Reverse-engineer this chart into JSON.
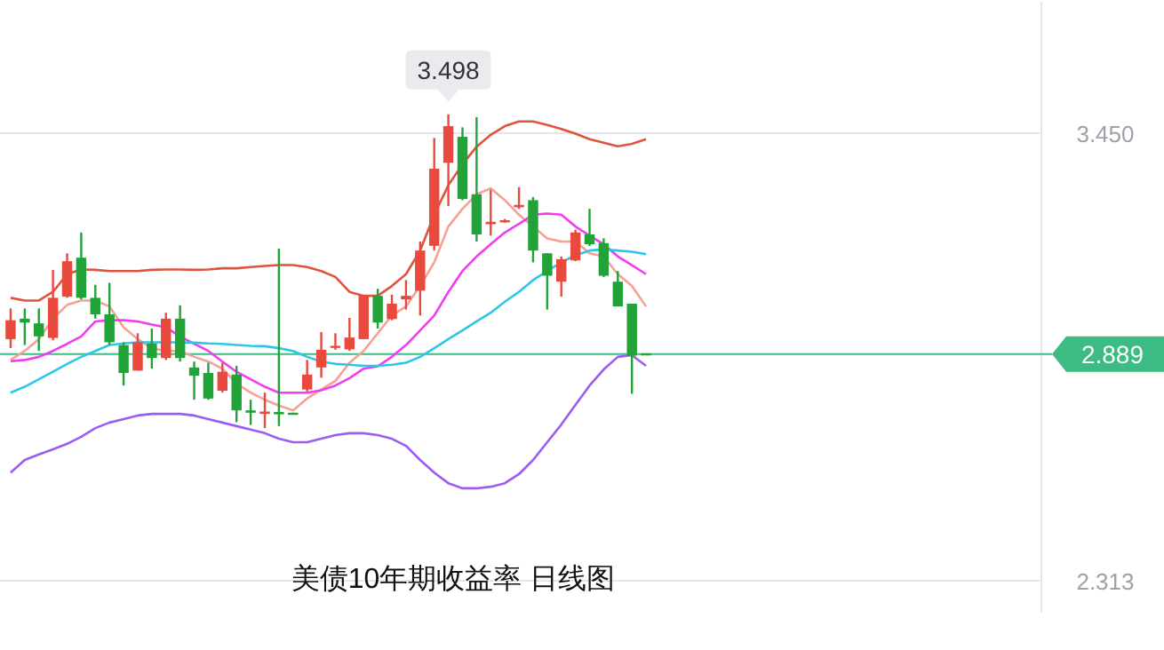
{
  "chart_data": {
    "type": "candlestick",
    "title": "美债10年期收益率 日线图",
    "categories": [
      null,
      null,
      null,
      null,
      null,
      null,
      null,
      null,
      null,
      null,
      null,
      null,
      null,
      null,
      null,
      null,
      null,
      null,
      null,
      null,
      null,
      null,
      null,
      null,
      null,
      null,
      null,
      null,
      null,
      null,
      null,
      null,
      null,
      null,
      null,
      null,
      null,
      null,
      null,
      null,
      null,
      null,
      null,
      null,
      null,
      null
    ],
    "ohlc": [
      [
        2.927,
        3.005,
        2.904,
        2.975
      ],
      [
        2.979,
        3.005,
        2.912,
        2.969
      ],
      [
        2.967,
        3.005,
        2.897,
        2.934
      ],
      [
        2.93,
        3.103,
        2.924,
        3.032
      ],
      [
        3.035,
        3.145,
        3.032,
        3.125
      ],
      [
        3.134,
        3.198,
        3.028,
        3.032
      ],
      [
        3.032,
        3.065,
        2.979,
        2.99
      ],
      [
        2.99,
        3.07,
        2.912,
        2.919
      ],
      [
        2.912,
        2.919,
        2.809,
        2.841
      ],
      [
        2.847,
        2.942,
        2.847,
        2.919
      ],
      [
        2.916,
        2.954,
        2.852,
        2.879
      ],
      [
        2.879,
        2.994,
        2.874,
        2.979
      ],
      [
        2.979,
        3.013,
        2.87,
        2.879
      ],
      [
        2.855,
        2.87,
        2.773,
        2.834
      ],
      [
        2.841,
        2.867,
        2.773,
        2.776
      ],
      [
        2.796,
        2.867,
        2.791,
        2.844
      ],
      [
        2.837,
        2.859,
        2.716,
        2.746
      ],
      [
        2.746,
        2.773,
        2.709,
        2.74
      ],
      [
        2.737,
        2.791,
        2.701,
        2.743
      ],
      [
        2.742,
        3.157,
        2.706,
        2.736
      ],
      [
        2.74,
        2.74,
        2.736,
        2.736
      ],
      [
        2.799,
        2.874,
        2.794,
        2.837
      ],
      [
        2.855,
        2.945,
        2.829,
        2.9
      ],
      [
        2.906,
        2.942,
        2.9,
        2.91
      ],
      [
        2.901,
        2.981,
        2.897,
        2.931
      ],
      [
        2.927,
        3.038,
        2.927,
        3.038
      ],
      [
        3.037,
        3.055,
        2.954,
        2.969
      ],
      [
        2.978,
        3.04,
        2.975,
        3.017
      ],
      [
        3.028,
        3.077,
        3.002,
        3.037
      ],
      [
        3.05,
        3.175,
        2.987,
        3.152
      ],
      [
        3.164,
        3.438,
        3.152,
        3.36
      ],
      [
        3.375,
        3.498,
        3.265,
        3.468
      ],
      [
        3.441,
        3.465,
        3.28,
        3.283
      ],
      [
        3.295,
        3.491,
        3.175,
        3.193
      ],
      [
        3.219,
        3.306,
        3.19,
        3.225
      ],
      [
        3.225,
        3.232,
        3.223,
        3.229
      ],
      [
        3.262,
        3.313,
        3.258,
        3.268
      ],
      [
        3.28,
        3.288,
        3.122,
        3.152
      ],
      [
        3.145,
        3.145,
        3.002,
        3.088
      ],
      [
        3.073,
        3.137,
        3.035,
        3.13
      ],
      [
        3.127,
        3.205,
        3.125,
        3.198
      ],
      [
        3.193,
        3.258,
        3.164,
        3.168
      ],
      [
        3.171,
        3.183,
        3.085,
        3.088
      ],
      [
        3.073,
        3.1,
        3.01,
        3.01
      ],
      [
        3.017,
        3.017,
        2.788,
        2.885
      ],
      [
        2.891,
        2.891,
        2.887,
        2.889
      ]
    ],
    "colors": [
      "#e84a3e",
      "#22a33a",
      "#22a33a",
      "#e84a3e",
      "#e84a3e",
      "#22a33a",
      "#22a33a",
      "#22a33a",
      "#22a33a",
      "#e84a3e",
      "#22a33a",
      "#e84a3e",
      "#22a33a",
      "#22a33a",
      "#22a33a",
      "#e84a3e",
      "#22a33a",
      "#22a33a",
      "#e84a3e",
      "#22a33a",
      "#22a33a",
      "#e84a3e",
      "#e84a3e",
      "#e84a3e",
      "#e84a3e",
      "#e84a3e",
      "#22a33a",
      "#e84a3e",
      "#e84a3e",
      "#e84a3e",
      "#e84a3e",
      "#e84a3e",
      "#22a33a",
      "#22a33a",
      "#e84a3e",
      "#e84a3e",
      "#e84a3e",
      "#22a33a",
      "#22a33a",
      "#e84a3e",
      "#e84a3e",
      "#22a33a",
      "#22a33a",
      "#22a33a",
      "#22a33a",
      "#22a33a"
    ],
    "series": [
      {
        "type": "line",
        "color": "#e0533d",
        "values": [
          3.032,
          3.025,
          3.025,
          3.047,
          3.092,
          3.104,
          3.103,
          3.1,
          3.1,
          3.1,
          3.103,
          3.104,
          3.104,
          3.103,
          3.104,
          3.107,
          3.107,
          3.11,
          3.113,
          3.115,
          3.115,
          3.11,
          3.1,
          3.085,
          3.047,
          3.037,
          3.037,
          3.062,
          3.092,
          3.152,
          3.243,
          3.318,
          3.371,
          3.416,
          3.446,
          3.468,
          3.48,
          3.48,
          3.471,
          3.461,
          3.449,
          3.435,
          3.426,
          3.417,
          3.423,
          3.435
        ]
      },
      {
        "type": "line",
        "color": "#f6a096",
        "values": [
          2.874,
          2.897,
          2.927,
          2.979,
          3.014,
          3.025,
          3.025,
          3.01,
          2.957,
          2.927,
          2.904,
          2.897,
          2.897,
          2.882,
          2.87,
          2.852,
          2.814,
          2.791,
          2.773,
          2.758,
          2.746,
          2.776,
          2.799,
          2.821,
          2.867,
          2.897,
          2.942,
          2.987,
          3.01,
          3.062,
          3.122,
          3.213,
          3.258,
          3.295,
          3.31,
          3.28,
          3.243,
          3.213,
          3.183,
          3.175,
          3.175,
          3.145,
          3.137,
          3.092,
          3.062,
          3.01
        ]
      },
      {
        "type": "line",
        "color": "#f23cf0",
        "values": [
          2.871,
          2.874,
          2.882,
          2.897,
          2.915,
          2.934,
          2.972,
          2.975,
          2.975,
          2.972,
          2.964,
          2.957,
          2.934,
          2.915,
          2.897,
          2.87,
          2.844,
          2.825,
          2.806,
          2.791,
          2.791,
          2.791,
          2.797,
          2.809,
          2.828,
          2.852,
          2.858,
          2.882,
          2.912,
          2.949,
          2.987,
          3.047,
          3.1,
          3.137,
          3.168,
          3.198,
          3.22,
          3.243,
          3.246,
          3.243,
          3.213,
          3.19,
          3.168,
          3.137,
          3.115,
          3.092
        ]
      },
      {
        "type": "line",
        "color": "#2ec5e8",
        "values": [
          2.791,
          2.806,
          2.825,
          2.844,
          2.864,
          2.882,
          2.897,
          2.912,
          2.916,
          2.919,
          2.919,
          2.919,
          2.919,
          2.918,
          2.916,
          2.915,
          2.912,
          2.91,
          2.909,
          2.904,
          2.897,
          2.882,
          2.87,
          2.864,
          2.862,
          2.859,
          2.859,
          2.862,
          2.867,
          2.882,
          2.904,
          2.927,
          2.949,
          2.972,
          2.994,
          3.022,
          3.047,
          3.077,
          3.1,
          3.122,
          3.14,
          3.152,
          3.155,
          3.152,
          3.149,
          3.143
        ]
      },
      {
        "type": "line",
        "color": "#9b5cf2",
        "values": [
          2.588,
          2.62,
          2.634,
          2.647,
          2.661,
          2.679,
          2.701,
          2.715,
          2.724,
          2.733,
          2.737,
          2.737,
          2.737,
          2.733,
          2.724,
          2.715,
          2.706,
          2.697,
          2.688,
          2.674,
          2.665,
          2.665,
          2.674,
          2.683,
          2.688,
          2.688,
          2.683,
          2.674,
          2.656,
          2.62,
          2.588,
          2.561,
          2.548,
          2.548,
          2.552,
          2.561,
          2.584,
          2.62,
          2.665,
          2.71,
          2.76,
          2.809,
          2.85,
          2.882,
          2.886,
          2.859
        ]
      }
    ],
    "ylim": [
      2.232,
      3.784
    ],
    "yticks": [
      {
        "value": 3.45,
        "label": "3.450"
      },
      {
        "value": 2.313,
        "label": "2.313"
      }
    ],
    "grid": "y",
    "ref_lines": [
      {
        "axis": "y",
        "value": 2.889,
        "label": "2.889",
        "color": "#3dbb85"
      }
    ],
    "annotations": [
      {
        "text": "3.498",
        "y": 3.498
      }
    ],
    "marker": "none",
    "line_style": "solid"
  }
}
